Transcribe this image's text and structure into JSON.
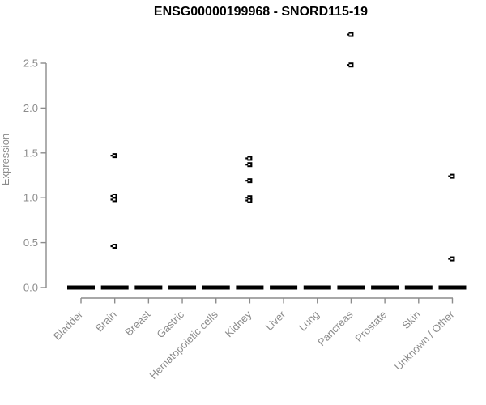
{
  "colors": {
    "background": "#ffffff",
    "title_text": "#000000",
    "axis": "#8c8c8c",
    "axis_text": "#8c8c8c",
    "points": "#000000",
    "point_inner_dash": "#ffffff"
  },
  "chart_data": {
    "type": "scatter",
    "title": "ENSG00000199968 - SNORD115-19",
    "xlabel": "",
    "ylabel": "Expression",
    "ylim": [
      0,
      2.9
    ],
    "grid": false,
    "legend": "none",
    "y_ticks": [
      "0.0",
      "0.5",
      "1.0",
      "1.5",
      "2.0",
      "2.5"
    ],
    "categories": [
      {
        "label": "Bladder",
        "zero_cluster": true,
        "outliers": []
      },
      {
        "label": "Brain",
        "zero_cluster": true,
        "outliers": [
          1.47,
          1.02,
          0.98,
          0.46
        ]
      },
      {
        "label": "Breast",
        "zero_cluster": true,
        "outliers": []
      },
      {
        "label": "Gastric",
        "zero_cluster": true,
        "outliers": []
      },
      {
        "label": "Hematopoietic cells",
        "zero_cluster": true,
        "outliers": []
      },
      {
        "label": "Kidney",
        "zero_cluster": true,
        "outliers": [
          1.44,
          1.37,
          1.19,
          1.0,
          0.97
        ]
      },
      {
        "label": "Liver",
        "zero_cluster": true,
        "outliers": []
      },
      {
        "label": "Lung",
        "zero_cluster": true,
        "outliers": []
      },
      {
        "label": "Pancreas",
        "zero_cluster": true,
        "outliers": [
          2.82,
          2.48
        ]
      },
      {
        "label": "Prostate",
        "zero_cluster": true,
        "outliers": []
      },
      {
        "label": "Skin",
        "zero_cluster": true,
        "outliers": []
      },
      {
        "label": "Unknown / Other",
        "zero_cluster": true,
        "outliers": [
          1.24,
          0.32
        ]
      }
    ]
  }
}
